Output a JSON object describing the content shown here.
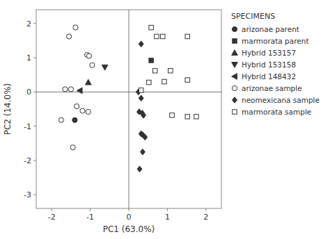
{
  "chart_data": {
    "type": "scatter",
    "xlabel": "PC1 (63.0%)",
    "ylabel": "PC2 (14.0%)",
    "xlim": [
      -2.4,
      2.4
    ],
    "ylim": [
      -3.4,
      2.4
    ],
    "xticks": [
      -2,
      -1,
      0,
      1,
      2
    ],
    "yticks": [
      -3,
      -2,
      -1,
      0,
      1,
      2
    ],
    "grid": false,
    "legend": "right",
    "legend_title": "SPECIMENS",
    "series": [
      {
        "name": "arizonae parent",
        "marker": "circle",
        "x": [
          -1.4
        ],
        "values": [
          -0.82
        ]
      },
      {
        "name": "marmorata parent",
        "marker": "square",
        "x": [
          0.58
        ],
        "values": [
          0.92
        ]
      },
      {
        "name": "Hybrid 153157",
        "marker": "triangle-up",
        "x": [
          -1.05
        ],
        "values": [
          0.28
        ]
      },
      {
        "name": "Hybrid 153158",
        "marker": "triangle-down",
        "x": [
          -0.62
        ],
        "values": [
          0.72
        ]
      },
      {
        "name": "Hybrid 148432",
        "marker": "triangle-left",
        "x": [
          -1.27
        ],
        "values": [
          0.04
        ]
      },
      {
        "name": "arizonae sample",
        "marker": "open-circle",
        "x": [
          -1.75,
          -1.55,
          -1.38,
          -1.08,
          -1.03,
          -1.65,
          -1.5,
          -1.35,
          -1.2,
          -1.05,
          -0.95,
          -1.45
        ],
        "values": [
          -0.82,
          1.62,
          1.88,
          1.08,
          1.05,
          0.08,
          0.08,
          -0.42,
          -0.55,
          -0.58,
          0.78,
          -1.62
        ]
      },
      {
        "name": "neomexicana sample",
        "marker": "diamond",
        "x": [
          0.25,
          0.32,
          0.27,
          0.35,
          0.38,
          0.32,
          0.36,
          0.42,
          0.36,
          0.28,
          0.32
        ],
        "values": [
          0.0,
          -0.18,
          -0.58,
          -0.62,
          -0.68,
          -1.22,
          -1.25,
          -1.32,
          -1.75,
          -2.25,
          1.4
        ]
      },
      {
        "name": "marmorata sample",
        "marker": "open-square",
        "x": [
          0.58,
          0.72,
          0.88,
          1.52,
          0.68,
          1.08,
          1.52,
          0.32,
          0.52,
          0.92,
          1.12,
          1.52,
          1.75
        ],
        "values": [
          1.88,
          1.62,
          1.62,
          1.62,
          0.62,
          0.62,
          0.35,
          0.05,
          0.28,
          0.3,
          -0.68,
          -0.72,
          -0.72
        ]
      }
    ]
  }
}
